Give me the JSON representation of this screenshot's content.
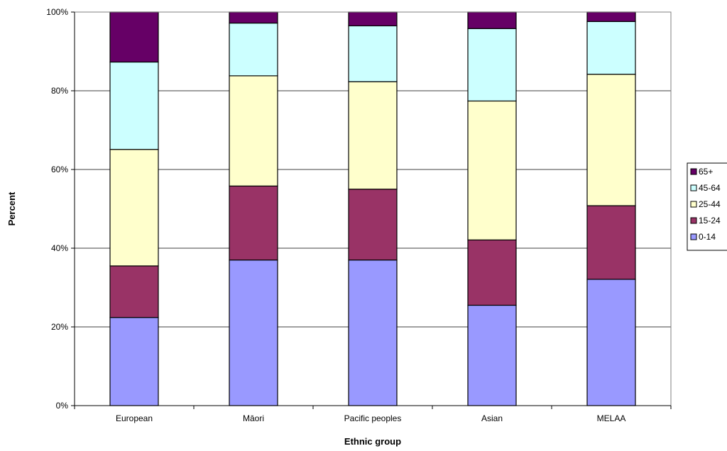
{
  "chart_data": {
    "type": "bar",
    "stacked": true,
    "percent_scale": true,
    "title": "",
    "xlabel": "Ethnic group",
    "ylabel": "Percent",
    "ylim": [
      0,
      100
    ],
    "yticks": [
      "0%",
      "20%",
      "40%",
      "60%",
      "80%",
      "100%"
    ],
    "categories": [
      "European",
      "Māori",
      "Pacific peoples",
      "Asian",
      "MELAA"
    ],
    "grid": true,
    "legend_position": "right",
    "series": [
      {
        "name": "0-14",
        "color": "#9999ff",
        "values": [
          22.4,
          37.0,
          37.0,
          25.5,
          32.1
        ]
      },
      {
        "name": "15-24",
        "color": "#993366",
        "values": [
          13.1,
          18.8,
          18.0,
          16.6,
          18.7
        ]
      },
      {
        "name": "25-44",
        "color": "#ffffcc",
        "values": [
          29.6,
          28.0,
          27.3,
          35.3,
          33.4
        ]
      },
      {
        "name": "45-64",
        "color": "#ccffff",
        "values": [
          22.2,
          13.4,
          14.2,
          18.4,
          13.4
        ]
      },
      {
        "name": "65+",
        "color": "#660066",
        "values": [
          12.7,
          2.8,
          3.5,
          4.2,
          2.4
        ]
      }
    ]
  }
}
